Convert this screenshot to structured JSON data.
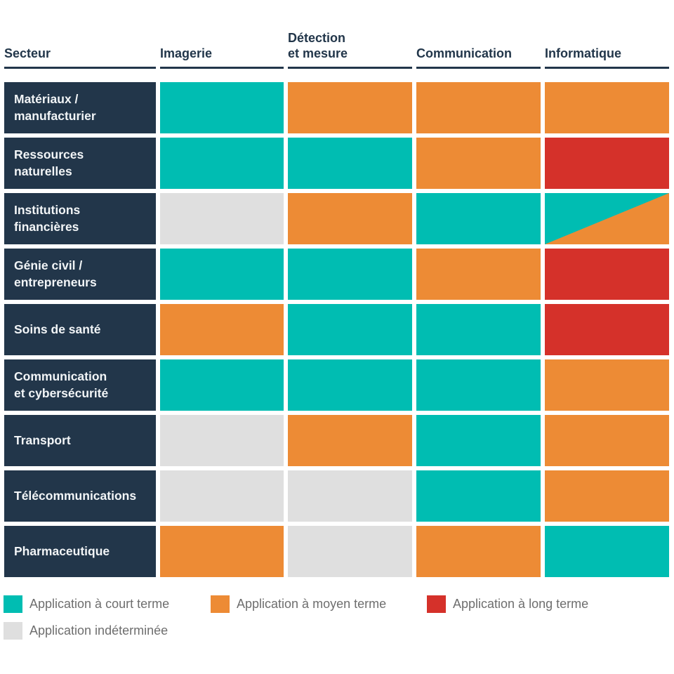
{
  "colors": {
    "navy": "#22364A",
    "background": "#FFFFFF",
    "label_text": "#F2F5F7",
    "legend_text": "#6E6E6E"
  },
  "chart_data": {
    "type": "heatmap",
    "columns": [
      "Secteur",
      "Imagerie",
      "Détection\net mesure",
      "Communication",
      "Informatique"
    ],
    "rows": [
      {
        "sector": "Matériaux /\nmanufacturier",
        "values": [
          "court",
          "moyen",
          "moyen",
          "moyen"
        ]
      },
      {
        "sector": "Ressources\nnaturelles",
        "values": [
          "court",
          "court",
          "moyen",
          "long"
        ]
      },
      {
        "sector": "Institutions\nfinancières",
        "values": [
          "indeterminee",
          "moyen",
          "court",
          "court+moyen"
        ]
      },
      {
        "sector": "Génie civil /\nentrepreneurs",
        "values": [
          "court",
          "court",
          "moyen",
          "long"
        ]
      },
      {
        "sector": "Soins de santé",
        "values": [
          "moyen",
          "court",
          "court",
          "long"
        ]
      },
      {
        "sector": "Communication\net cybersécurité",
        "values": [
          "court",
          "court",
          "court",
          "moyen"
        ]
      },
      {
        "sector": "Transport",
        "values": [
          "indeterminee",
          "moyen",
          "court",
          "moyen"
        ]
      },
      {
        "sector": "Télécommunications",
        "values": [
          "indeterminee",
          "indeterminee",
          "court",
          "moyen"
        ]
      },
      {
        "sector": "Pharmaceutique",
        "values": [
          "moyen",
          "indeterminee",
          "moyen",
          "court"
        ]
      }
    ],
    "legend": [
      {
        "key": "court",
        "label": "Application à court terme",
        "color": "#00BDB2"
      },
      {
        "key": "moyen",
        "label": "Application à moyen terme",
        "color": "#ED8B35"
      },
      {
        "key": "long",
        "label": "Application à long terme",
        "color": "#D5312A"
      },
      {
        "key": "indeterminee",
        "label": "Application indéterminée",
        "color": "#DFDFDF"
      }
    ],
    "legend_position": "bottom",
    "grid": "off",
    "split_cell_note": "Cell Institutions financières × Informatique is split diagonally: court terme (top-left) / moyen terme (bottom-right)"
  }
}
